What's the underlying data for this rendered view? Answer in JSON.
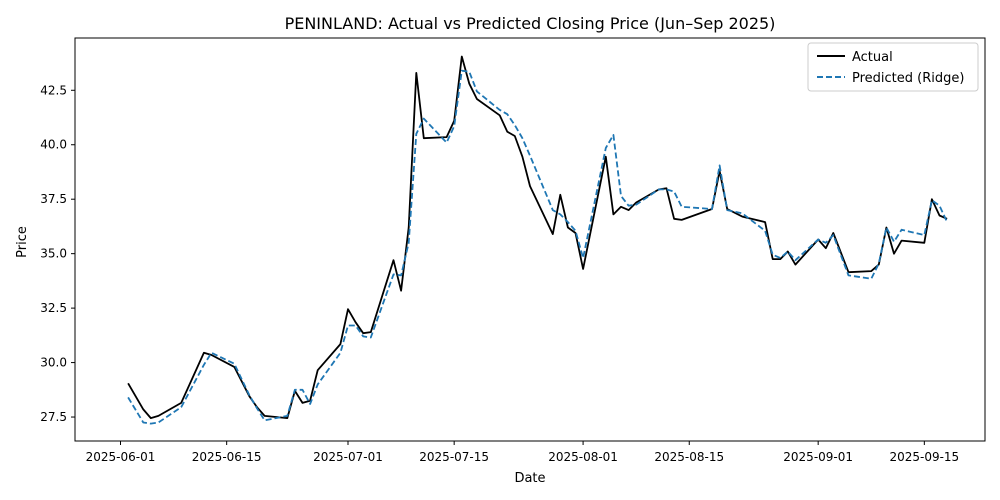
{
  "chart_data": {
    "type": "line",
    "title": "PENINLAND: Actual vs Predicted Closing Price (Jun–Sep 2025)",
    "xlabel": "Date",
    "ylabel": "Price",
    "xlim": [
      "2025-05-26",
      "2025-09-23"
    ],
    "ylim": [
      26.4,
      44.9
    ],
    "x_ticks": [
      "2025-06-01",
      "2025-06-15",
      "2025-07-01",
      "2025-07-15",
      "2025-08-01",
      "2025-08-15",
      "2025-09-01",
      "2025-09-15"
    ],
    "y_ticks": [
      27.5,
      30.0,
      32.5,
      35.0,
      37.5,
      40.0,
      42.5
    ],
    "y_tick_labels": [
      "27.5",
      "30.0",
      "32.5",
      "35.0",
      "37.5",
      "40.0",
      "42.5"
    ],
    "grid": false,
    "legend_position": "top-right",
    "x": [
      "2025-06-02",
      "2025-06-04",
      "2025-06-05",
      "2025-06-06",
      "2025-06-09",
      "2025-06-12",
      "2025-06-13",
      "2025-06-16",
      "2025-06-18",
      "2025-06-19",
      "2025-06-20",
      "2025-06-23",
      "2025-06-24",
      "2025-06-25",
      "2025-06-26",
      "2025-06-27",
      "2025-06-30",
      "2025-07-01",
      "2025-07-02",
      "2025-07-03",
      "2025-07-04",
      "2025-07-07",
      "2025-07-08",
      "2025-07-09",
      "2025-07-10",
      "2025-07-11",
      "2025-07-14",
      "2025-07-15",
      "2025-07-16",
      "2025-07-17",
      "2025-07-18",
      "2025-07-21",
      "2025-07-22",
      "2025-07-23",
      "2025-07-24",
      "2025-07-25",
      "2025-07-28",
      "2025-07-29",
      "2025-07-30",
      "2025-07-31",
      "2025-08-01",
      "2025-08-04",
      "2025-08-05",
      "2025-08-06",
      "2025-08-07",
      "2025-08-08",
      "2025-08-11",
      "2025-08-12",
      "2025-08-13",
      "2025-08-14",
      "2025-08-18",
      "2025-08-19",
      "2025-08-20",
      "2025-08-22",
      "2025-08-25",
      "2025-08-26",
      "2025-08-27",
      "2025-08-28",
      "2025-08-29",
      "2025-09-01",
      "2025-09-02",
      "2025-09-03",
      "2025-09-05",
      "2025-09-08",
      "2025-09-09",
      "2025-09-10",
      "2025-09-11",
      "2025-09-12",
      "2025-09-15",
      "2025-09-16",
      "2025-09-17",
      "2025-09-18"
    ],
    "series": [
      {
        "name": "Actual",
        "color": "#000000",
        "dash": "solid",
        "values": [
          29.05,
          27.85,
          27.45,
          27.55,
          28.15,
          30.45,
          30.35,
          29.8,
          28.45,
          27.95,
          27.55,
          27.45,
          28.7,
          28.15,
          28.25,
          29.65,
          30.85,
          32.45,
          31.85,
          31.35,
          31.4,
          34.7,
          33.3,
          36.2,
          43.3,
          40.3,
          40.35,
          41.1,
          44.05,
          42.8,
          42.1,
          41.35,
          40.6,
          40.4,
          39.45,
          38.1,
          35.9,
          37.7,
          36.2,
          35.95,
          34.3,
          39.45,
          36.8,
          37.15,
          37.0,
          37.35,
          37.95,
          38.0,
          36.6,
          36.55,
          37.05,
          38.8,
          37.05,
          36.7,
          36.45,
          34.75,
          34.75,
          35.1,
          34.5,
          35.65,
          35.25,
          35.95,
          34.15,
          34.2,
          34.5,
          36.2,
          35.0,
          35.6,
          35.5,
          37.5,
          36.75,
          36.6
        ]
      },
      {
        "name": "Predicted (Ridge)",
        "color": "#1f77b4",
        "dash": "dashed",
        "values": [
          28.4,
          27.25,
          27.2,
          27.25,
          27.95,
          29.9,
          30.45,
          29.95,
          28.5,
          27.9,
          27.35,
          27.55,
          28.75,
          28.75,
          28.1,
          29.0,
          30.45,
          31.7,
          31.7,
          31.2,
          31.15,
          34.05,
          34.0,
          35.5,
          40.5,
          41.2,
          40.1,
          40.85,
          43.4,
          43.35,
          42.45,
          41.6,
          41.4,
          40.9,
          40.3,
          39.5,
          37.0,
          36.8,
          36.45,
          36.05,
          34.8,
          39.85,
          40.45,
          37.65,
          37.2,
          37.25,
          37.95,
          37.95,
          37.85,
          37.15,
          37.05,
          39.05,
          37.0,
          36.85,
          36.05,
          34.95,
          34.8,
          35.1,
          34.7,
          35.65,
          35.5,
          35.85,
          34.0,
          33.85,
          34.55,
          36.2,
          35.55,
          36.1,
          35.85,
          37.45,
          37.2,
          36.45
        ]
      }
    ]
  }
}
